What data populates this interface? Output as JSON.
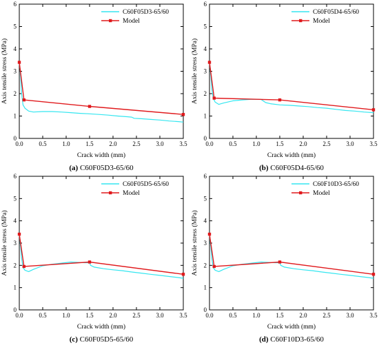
{
  "colors": {
    "experiment": "#33e6f0",
    "model": "#e0191c",
    "axis": "#000000",
    "background": "#ffffff"
  },
  "chart_data": [
    {
      "type": "line",
      "caption_label": "(a)",
      "caption_text": "C60F05D3-65/60",
      "xlabel": "Crack width (mm)",
      "ylabel": "Axis tensile stress (MPa)",
      "xlim": [
        0,
        3.5
      ],
      "ylim": [
        0,
        6
      ],
      "xticks": [
        "0.0",
        "0.5",
        "1.0",
        "1.5",
        "2.0",
        "2.5",
        "3.0",
        "3.5"
      ],
      "yticks": [
        "0",
        "1",
        "2",
        "3",
        "4",
        "5",
        "6"
      ],
      "legend_position": "top-right",
      "series": [
        {
          "name": "C60F05D3-65/60",
          "style": "line",
          "x": [
            0.0,
            0.02,
            0.05,
            0.08,
            0.12,
            0.2,
            0.3,
            0.5,
            0.7,
            0.9,
            1.1,
            1.3,
            1.5,
            1.7,
            1.9,
            2.1,
            2.3,
            2.4,
            2.45,
            2.6,
            2.8,
            3.0,
            3.2,
            3.4,
            3.5
          ],
          "y": [
            3.4,
            3.0,
            2.0,
            1.5,
            1.35,
            1.22,
            1.18,
            1.2,
            1.2,
            1.18,
            1.15,
            1.12,
            1.1,
            1.07,
            1.04,
            1.0,
            0.97,
            0.95,
            0.9,
            0.88,
            0.85,
            0.82,
            0.78,
            0.75,
            0.73
          ]
        },
        {
          "name": "Model",
          "style": "line-marker",
          "x": [
            0.0,
            0.1,
            1.5,
            3.5
          ],
          "y": [
            3.4,
            1.72,
            1.43,
            1.07
          ]
        }
      ]
    },
    {
      "type": "line",
      "caption_label": "(b)",
      "caption_text": "C60F05D4-65/60",
      "xlabel": "Crack width (mm)",
      "ylabel": "Axis tensile stress (MPa)",
      "xlim": [
        0,
        3.5
      ],
      "ylim": [
        0,
        6
      ],
      "xticks": [
        "0.0",
        "0.5",
        "1.0",
        "1.5",
        "2.0",
        "2.5",
        "3.0",
        "3.5"
      ],
      "yticks": [
        "0",
        "1",
        "2",
        "3",
        "4",
        "5",
        "6"
      ],
      "legend_position": "top-right",
      "series": [
        {
          "name": "C60F05D4-65/60",
          "style": "line",
          "x": [
            0.0,
            0.02,
            0.05,
            0.08,
            0.12,
            0.2,
            0.3,
            0.5,
            0.7,
            0.9,
            1.1,
            1.2,
            1.3,
            1.5,
            1.7,
            1.9,
            2.1,
            2.3,
            2.5,
            2.7,
            2.9,
            3.1,
            3.3,
            3.5
          ],
          "y": [
            3.4,
            3.0,
            2.2,
            1.8,
            1.62,
            1.52,
            1.58,
            1.68,
            1.72,
            1.75,
            1.74,
            1.6,
            1.55,
            1.5,
            1.48,
            1.45,
            1.42,
            1.38,
            1.35,
            1.3,
            1.25,
            1.22,
            1.18,
            1.15
          ]
        },
        {
          "name": "Model",
          "style": "line-marker",
          "x": [
            0.0,
            0.1,
            1.5,
            3.5
          ],
          "y": [
            3.4,
            1.8,
            1.72,
            1.28
          ]
        }
      ]
    },
    {
      "type": "line",
      "caption_label": "(c)",
      "caption_text": "C60F05D5-65/60",
      "xlabel": "Crack width (mm)",
      "ylabel": "Axis tensile stress (MPa)",
      "xlim": [
        0,
        3.5
      ],
      "ylim": [
        0,
        6
      ],
      "xticks": [
        "0.0",
        "0.5",
        "1.0",
        "1.5",
        "2.0",
        "2.5",
        "3.0",
        "3.5"
      ],
      "yticks": [
        "0",
        "1",
        "2",
        "3",
        "4",
        "5",
        "6"
      ],
      "legend_position": "top-right",
      "series": [
        {
          "name": "C60F05D5-65/60",
          "style": "line",
          "x": [
            0.0,
            0.02,
            0.05,
            0.08,
            0.12,
            0.2,
            0.3,
            0.5,
            0.7,
            0.9,
            1.1,
            1.2,
            1.4,
            1.5,
            1.52,
            1.6,
            1.8,
            2.0,
            2.2,
            2.4,
            2.6,
            2.8,
            3.0,
            3.2,
            3.4,
            3.5
          ],
          "y": [
            3.4,
            3.0,
            2.3,
            1.9,
            1.78,
            1.72,
            1.82,
            1.98,
            2.05,
            2.1,
            2.15,
            2.14,
            2.12,
            2.12,
            2.0,
            1.92,
            1.85,
            1.8,
            1.76,
            1.7,
            1.65,
            1.6,
            1.55,
            1.5,
            1.45,
            1.42
          ]
        },
        {
          "name": "Model",
          "style": "line-marker",
          "x": [
            0.0,
            0.1,
            1.5,
            3.5
          ],
          "y": [
            3.4,
            1.95,
            2.15,
            1.6
          ]
        }
      ]
    },
    {
      "type": "line",
      "caption_label": "(d)",
      "caption_text": "C60F10D3-65/60",
      "xlabel": "Crack width (mm)",
      "ylabel": "Axis tensile stress (MPa)",
      "xlim": [
        0,
        3.5
      ],
      "ylim": [
        0,
        6
      ],
      "xticks": [
        "0.0",
        "0.5",
        "1.0",
        "1.5",
        "2.0",
        "2.5",
        "3.0",
        "3.5"
      ],
      "yticks": [
        "0",
        "1",
        "2",
        "3",
        "4",
        "5",
        "6"
      ],
      "legend_position": "top-right",
      "series": [
        {
          "name": "C60F10D3-65/60",
          "style": "line",
          "x": [
            0.0,
            0.02,
            0.05,
            0.08,
            0.12,
            0.2,
            0.3,
            0.5,
            0.7,
            0.9,
            1.1,
            1.2,
            1.4,
            1.5,
            1.52,
            1.6,
            1.8,
            2.0,
            2.2,
            2.4,
            2.6,
            2.8,
            3.0,
            3.2,
            3.4,
            3.5
          ],
          "y": [
            3.4,
            3.0,
            2.3,
            1.9,
            1.78,
            1.72,
            1.82,
            1.98,
            2.05,
            2.1,
            2.15,
            2.14,
            2.12,
            2.12,
            2.0,
            1.92,
            1.85,
            1.8,
            1.76,
            1.7,
            1.65,
            1.6,
            1.55,
            1.5,
            1.45,
            1.42
          ]
        },
        {
          "name": "Model",
          "style": "line-marker",
          "x": [
            0.0,
            0.1,
            1.5,
            3.5
          ],
          "y": [
            3.4,
            1.95,
            2.15,
            1.6
          ]
        }
      ]
    }
  ]
}
